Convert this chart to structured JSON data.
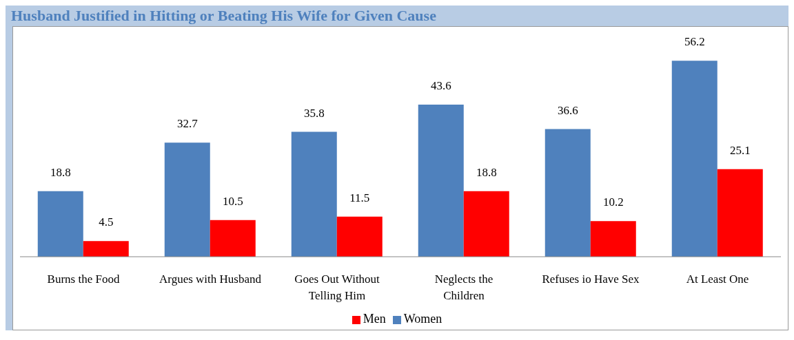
{
  "chart_data": {
    "type": "bar",
    "title": "Husband Justified in Hitting or Beating His Wife for Given Cause",
    "categories": [
      "Burns the Food",
      "Argues with Husband",
      "Goes Out Without Telling Him",
      "Neglects the Children",
      "Refuses io Have Sex",
      "At Least One"
    ],
    "series": [
      {
        "name": "Women",
        "color": "#4f81bd",
        "values": [
          18.8,
          32.7,
          35.8,
          43.6,
          36.6,
          56.2
        ]
      },
      {
        "name": "Men",
        "color": "#ff0000",
        "values": [
          4.5,
          10.5,
          11.5,
          18.8,
          10.2,
          25.1
        ]
      }
    ],
    "data_labels": true,
    "legend": "bottom",
    "grid": false
  }
}
